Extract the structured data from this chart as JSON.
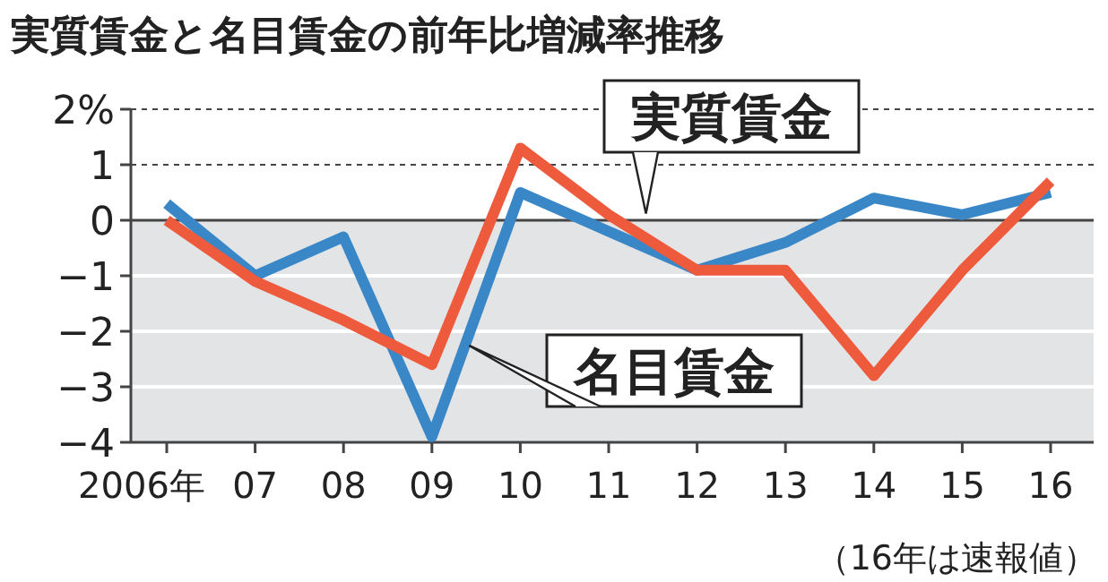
{
  "chart_data": {
    "type": "line",
    "title": "実質賃金と名目賃金の前年比増減率推移",
    "categories": [
      "2006年",
      "07",
      "08",
      "09",
      "10",
      "11",
      "12",
      "13",
      "14",
      "15",
      "16"
    ],
    "series": [
      {
        "name": "名目賃金",
        "color": "#3a87c8",
        "values": [
          0.3,
          -1.0,
          -0.3,
          -3.9,
          0.5,
          -0.2,
          -0.9,
          -0.4,
          0.4,
          0.1,
          0.5
        ]
      },
      {
        "name": "実質賃金",
        "color": "#ee5a3c",
        "values": [
          0.0,
          -1.1,
          -1.8,
          -2.6,
          1.3,
          0.1,
          -0.9,
          -0.9,
          -2.8,
          -0.9,
          0.7
        ]
      }
    ],
    "ylim": [
      -4,
      2
    ],
    "yticks": [
      {
        "value": 2,
        "label": "2%"
      },
      1,
      0,
      {
        "value": -1,
        "label": "−1"
      },
      {
        "value": -2,
        "label": "−2"
      },
      {
        "value": -3,
        "label": "−3"
      },
      {
        "value": -4,
        "label": "−4"
      }
    ],
    "bands": [
      {
        "axis": "y",
        "from": -4,
        "to": 0,
        "color": "#e3e4e6"
      }
    ],
    "ref_lines": [
      {
        "axis": "y",
        "value": 1,
        "line_style": "dotted",
        "color": "#444444"
      },
      {
        "axis": "y",
        "value": 2,
        "line_style": "dotted",
        "color": "#444444"
      }
    ],
    "grid": "y",
    "marker": "none",
    "line_style": "solid",
    "annotations": [
      "（16年は速報値）"
    ]
  }
}
